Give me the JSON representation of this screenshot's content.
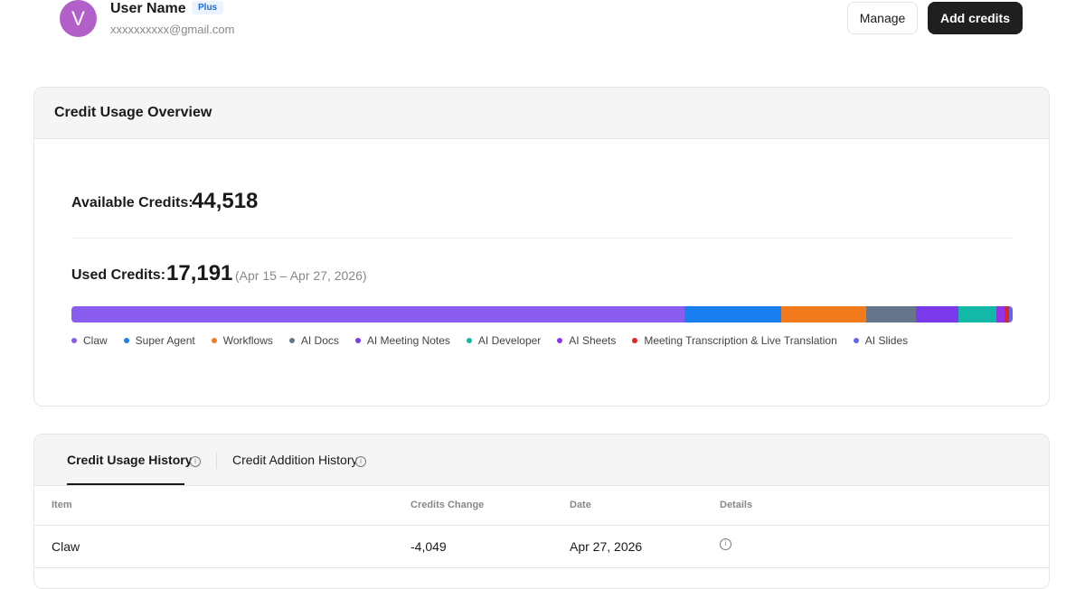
{
  "header": {
    "avatar_initial": "V",
    "user_name": "User Name",
    "plan_badge": "Plus",
    "email": "xxxxxxxxxx@gmail.com",
    "buttons": [
      "Manage",
      "Add credits"
    ]
  },
  "overview": {
    "title": "Credit Usage Overview",
    "available_label": "Available Credits:",
    "available_value": "44,518",
    "used_label": "Used Credits:",
    "used_value": "17,191",
    "period": "(Apr 15 – Apr 27, 2026)",
    "breakdown": [
      {
        "name": "Claw",
        "color": "#8b5cf0",
        "value": 11196
      },
      {
        "name": "Super Agent",
        "color": "#1a7ff0",
        "value": 1767
      },
      {
        "name": "Workflows",
        "color": "#f27a1c",
        "value": 1552
      },
      {
        "name": "AI Docs",
        "color": "#67758a",
        "value": 908
      },
      {
        "name": "AI Meeting Notes",
        "color": "#7c3aed",
        "value": 776
      },
      {
        "name": "AI Developer",
        "color": "#14b8a6",
        "value": 694
      },
      {
        "name": "AI Sheets",
        "color": "#9333ea",
        "value": 149
      },
      {
        "name": "Meeting Transcription & Live Translation",
        "color": "#dc2626",
        "value": 83
      },
      {
        "name": "AI Slides",
        "color": "#6366f1",
        "value": 66
      }
    ]
  },
  "history": {
    "tabs": [
      "Credit Usage History",
      "Credit Addition History"
    ],
    "columns": [
      "Item",
      "Credits Change",
      "Date",
      "Details"
    ],
    "rows": [
      [
        "Claw",
        "-4,049",
        "Apr 27, 2026"
      ]
    ]
  }
}
